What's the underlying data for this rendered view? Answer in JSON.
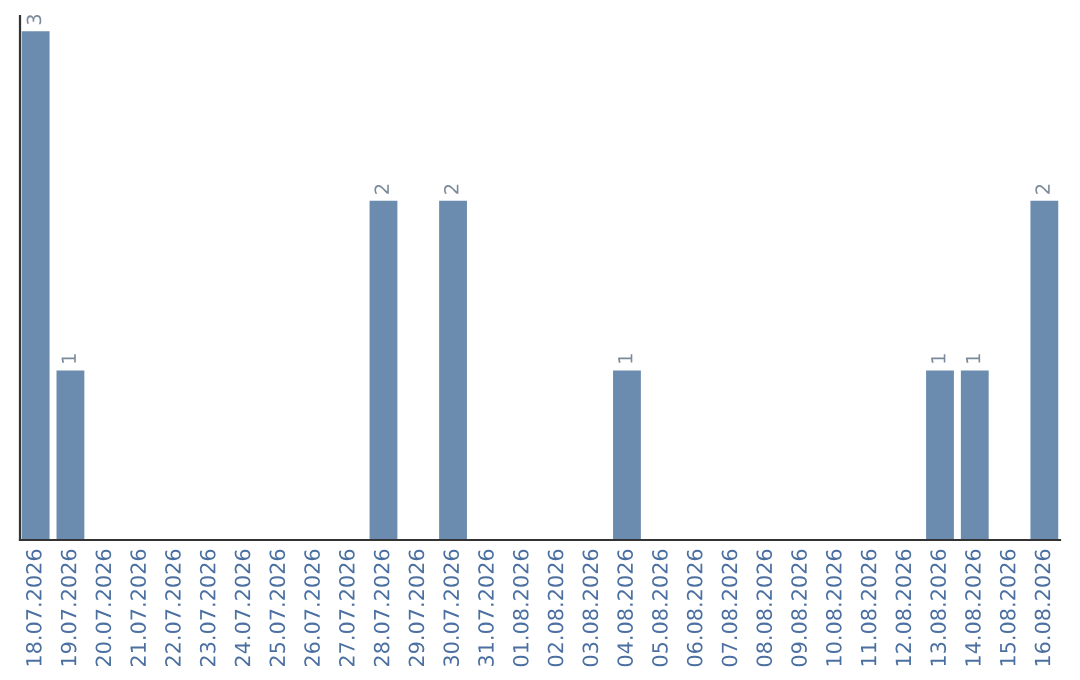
{
  "chart_data": {
    "type": "bar",
    "categories": [
      "18.07.2026",
      "19.07.2026",
      "20.07.2026",
      "21.07.2026",
      "22.07.2026",
      "23.07.2026",
      "24.07.2026",
      "25.07.2026",
      "26.07.2026",
      "27.07.2026",
      "28.07.2026",
      "29.07.2026",
      "30.07.2026",
      "31.07.2026",
      "01.08.2026",
      "02.08.2026",
      "03.08.2026",
      "04.08.2026",
      "05.08.2026",
      "06.08.2026",
      "07.08.2026",
      "08.08.2026",
      "09.08.2026",
      "10.08.2026",
      "11.08.2026",
      "12.08.2026",
      "13.08.2026",
      "14.08.2026",
      "15.08.2026",
      "16.08.2026"
    ],
    "values": [
      3,
      1,
      0,
      0,
      0,
      0,
      0,
      0,
      0,
      0,
      2,
      0,
      2,
      0,
      0,
      0,
      0,
      1,
      0,
      0,
      0,
      0,
      0,
      0,
      0,
      0,
      1,
      1,
      0,
      2
    ],
    "value_labels": [
      "3",
      "1",
      null,
      null,
      null,
      null,
      null,
      null,
      null,
      null,
      "2",
      null,
      "2",
      null,
      null,
      null,
      null,
      "1",
      null,
      null,
      null,
      null,
      null,
      null,
      null,
      null,
      "1",
      "1",
      null,
      "2"
    ],
    "color": "#6b8cae",
    "tick_labels": "x",
    "grid": false
  }
}
